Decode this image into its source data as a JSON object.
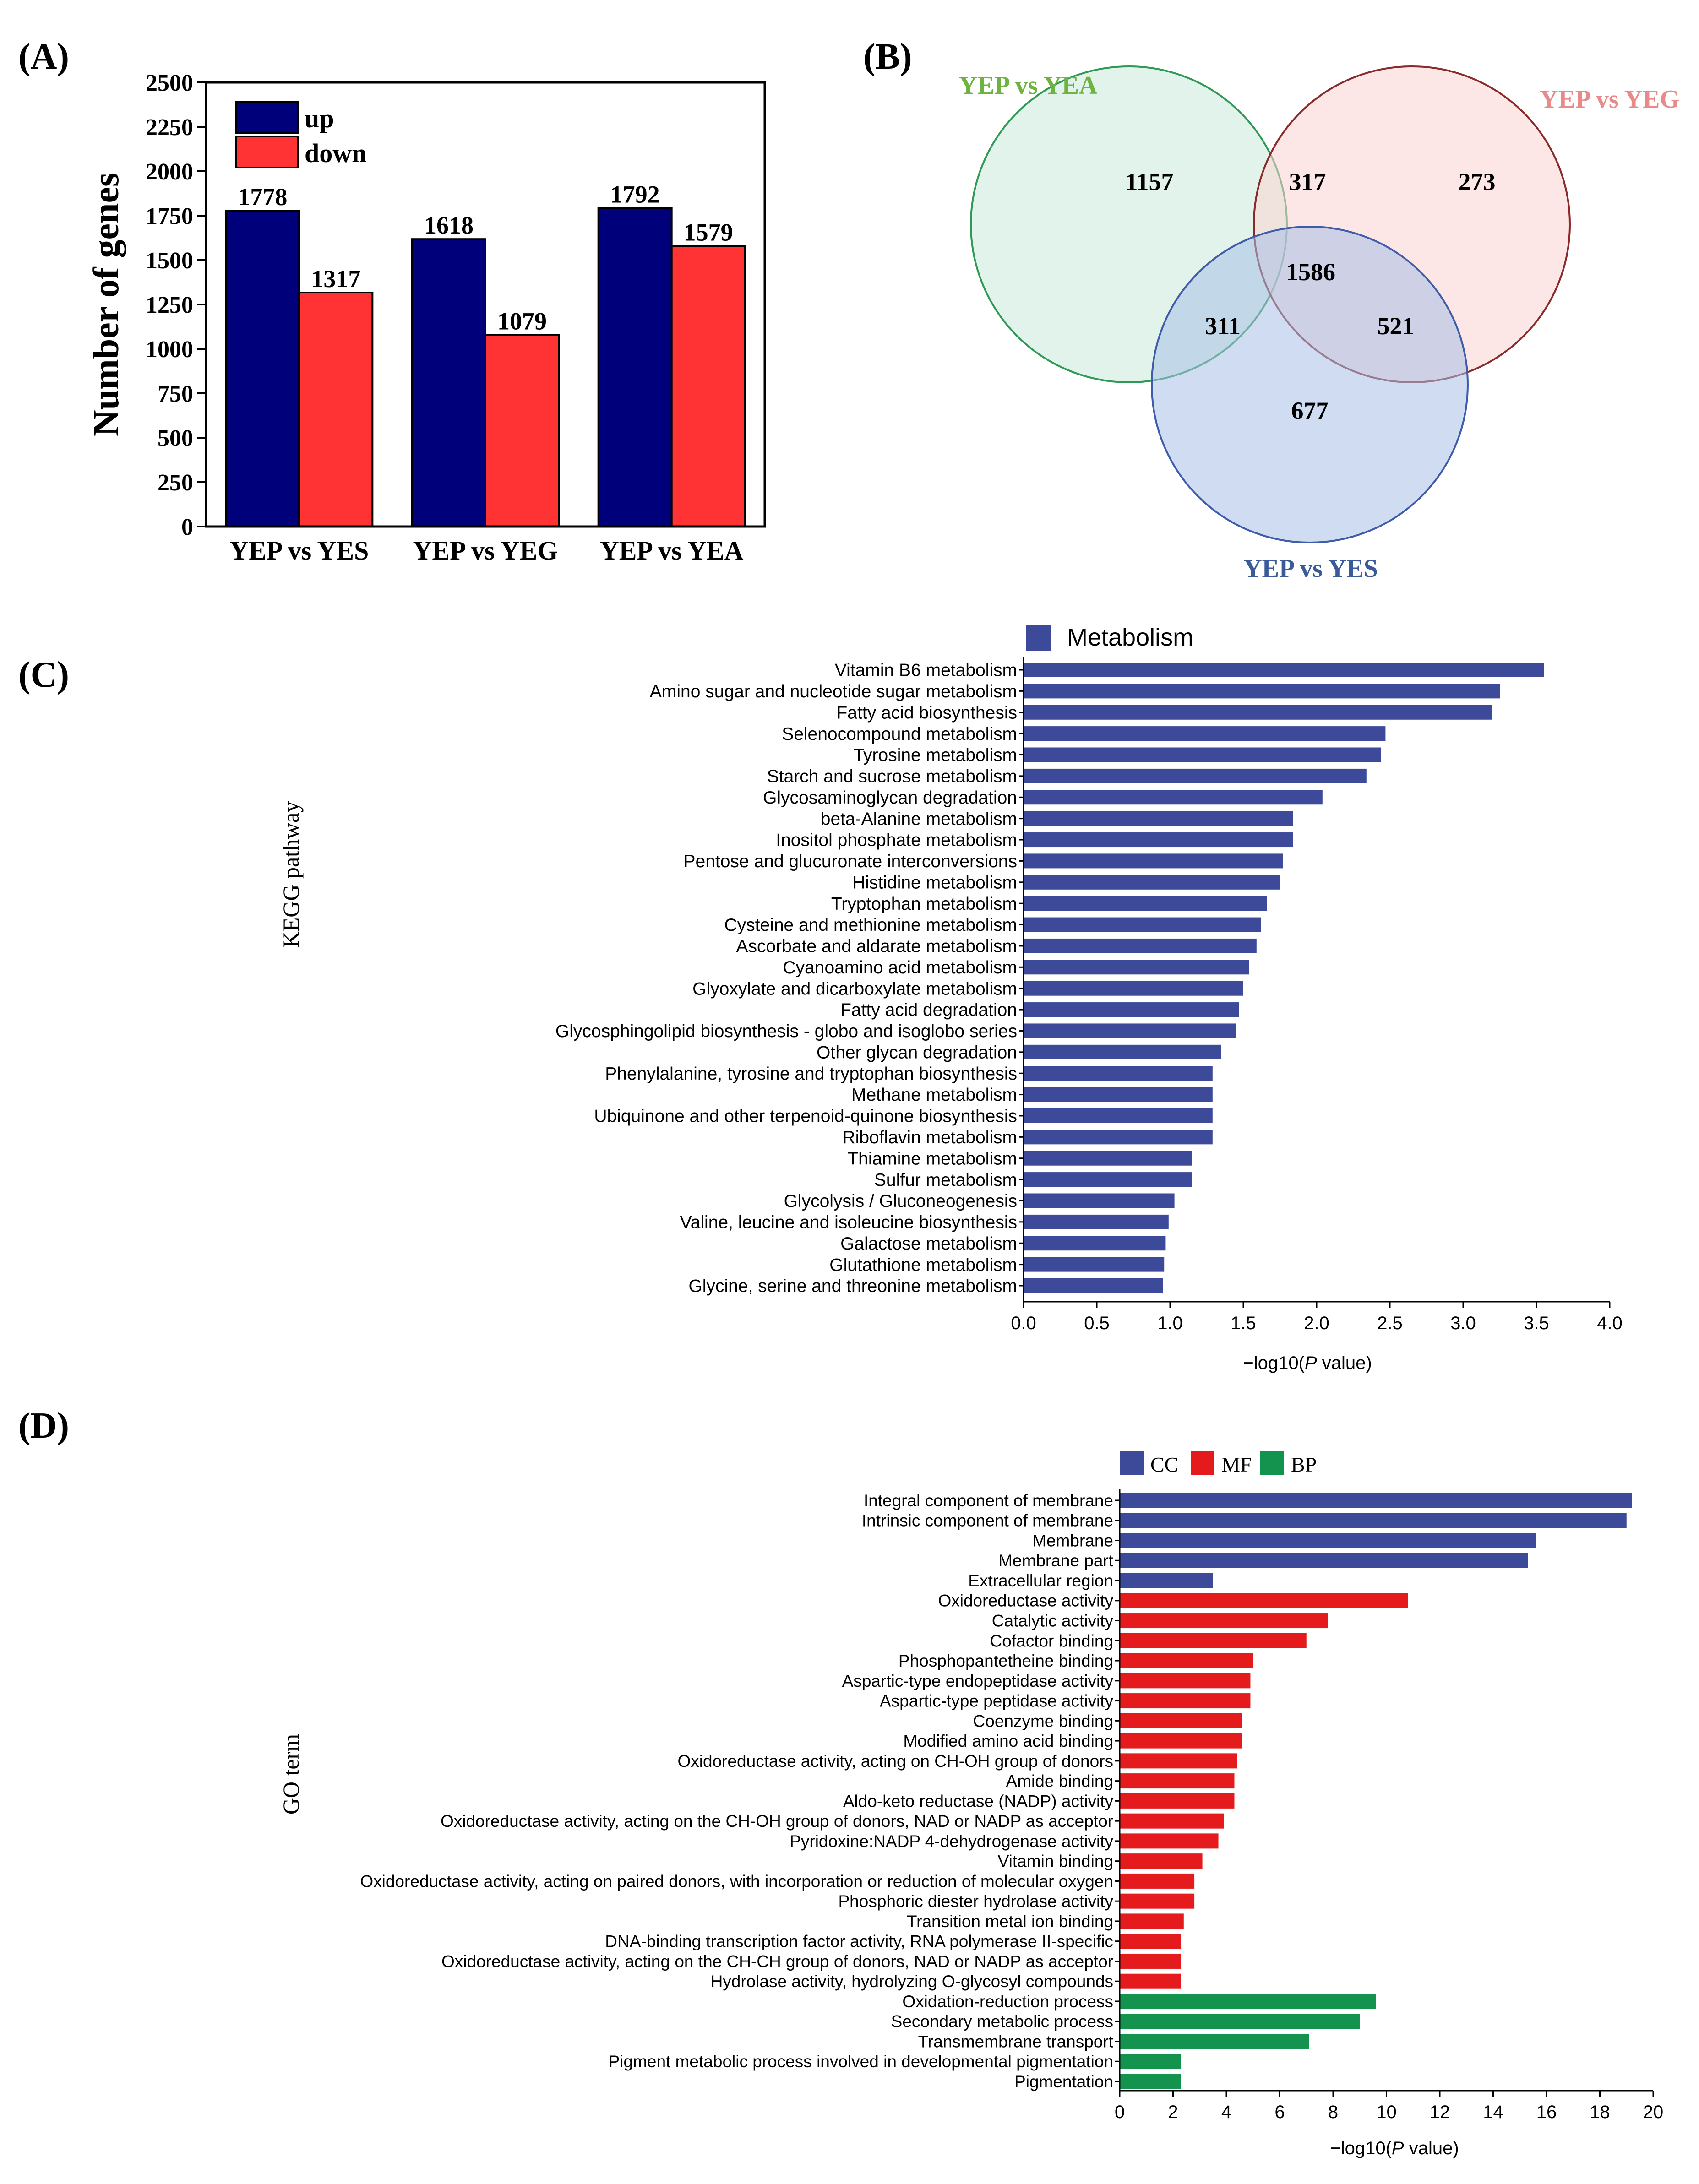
{
  "panel_labels": {
    "a": "(A)",
    "b": "(B)",
    "c": "(C)",
    "d": "(D)"
  },
  "colors": {
    "up": "#00007a",
    "down": "#ff3333",
    "metabolism": "#3c4a99",
    "cc": "#3c4a99",
    "mf": "#e41a1c",
    "bp": "#14934f",
    "yea_stroke": "#2e9a56",
    "yea_fill": "#cbeadb",
    "yeg_stroke": "#8a2a2a",
    "yeg_fill": "#fbd3d2",
    "yes_stroke": "#3e5ca8",
    "yes_fill": "#a8bfe6",
    "yea_label": "#6db33f",
    "yeg_label": "#e98a8a",
    "yes_label": "#3a5a98"
  },
  "chart_data": [
    {
      "id": "A",
      "type": "bar",
      "categories": [
        "YEP vs YES",
        "YEP vs YEG",
        "YEP vs YEA"
      ],
      "series": [
        {
          "name": "up",
          "values": [
            1778,
            1618,
            1792
          ]
        },
        {
          "name": "down",
          "values": [
            1317,
            1079,
            1579
          ]
        }
      ],
      "ylabel": "Number of genes",
      "ylim": [
        0,
        2500
      ],
      "yticks": [
        "0",
        "250",
        "500",
        "750",
        "1000",
        "1250",
        "1500",
        "1750",
        "2000",
        "2250",
        "2500"
      ],
      "legend_position": "top-left"
    },
    {
      "id": "B",
      "type": "venn",
      "sets": [
        "YEP vs YEA",
        "YEP vs YEG",
        "YEP vs YES"
      ],
      "regions": {
        "yea_only": "1157",
        "yeg_only": "273",
        "yes_only": "677",
        "yea_yeg": "317",
        "yea_yes": "311",
        "yeg_yes": "521",
        "all": "1586"
      }
    },
    {
      "id": "C",
      "type": "bar",
      "orientation": "horizontal",
      "legend": [
        "Metabolism"
      ],
      "ylabel": "KEGG pathway",
      "xlabel_prefix": "−log10(",
      "xlabel_italic": "P",
      "xlabel_suffix": " value)",
      "xlim": [
        0,
        4
      ],
      "xticks": [
        "0.0",
        "0.5",
        "1.0",
        "1.5",
        "2.0",
        "2.5",
        "3.0",
        "3.5",
        "4.0"
      ],
      "categories": [
        "Vitamin B6 metabolism",
        "Amino sugar and nucleotide sugar metabolism",
        "Fatty acid biosynthesis",
        "Selenocompound metabolism",
        "Tyrosine metabolism",
        "Starch and sucrose metabolism",
        "Glycosaminoglycan degradation",
        "beta-Alanine metabolism",
        "Inositol phosphate metabolism",
        "Pentose and glucuronate interconversions",
        "Histidine metabolism",
        "Tryptophan metabolism",
        "Cysteine and methionine metabolism",
        "Ascorbate and aldarate metabolism",
        "Cyanoamino acid metabolism",
        "Glyoxylate and dicarboxylate metabolism",
        "Fatty acid degradation",
        "Glycosphingolipid biosynthesis - globo and isoglobo series",
        "Other glycan degradation",
        "Phenylalanine, tyrosine and tryptophan biosynthesis",
        "Methane metabolism",
        "Ubiquinone and other terpenoid-quinone biosynthesis",
        "Riboflavin metabolism",
        "Thiamine metabolism",
        "Sulfur metabolism",
        "Glycolysis / Gluconeogenesis",
        "Valine, leucine and isoleucine biosynthesis",
        "Galactose metabolism",
        "Glutathione metabolism",
        "Glycine, serine and threonine metabolism"
      ],
      "values": [
        3.55,
        3.25,
        3.2,
        2.47,
        2.44,
        2.34,
        2.04,
        1.84,
        1.84,
        1.77,
        1.75,
        1.66,
        1.62,
        1.59,
        1.54,
        1.5,
        1.47,
        1.45,
        1.35,
        1.29,
        1.29,
        1.29,
        1.29,
        1.15,
        1.15,
        1.03,
        0.99,
        0.97,
        0.96,
        0.95
      ]
    },
    {
      "id": "D",
      "type": "bar",
      "orientation": "horizontal",
      "legend": [
        "CC",
        "MF",
        "BP"
      ],
      "ylabel": "GO term",
      "xlabel_prefix": "−log10(",
      "xlabel_italic": "P",
      "xlabel_suffix": " value)",
      "xlim": [
        0,
        20
      ],
      "xticks": [
        "0",
        "2",
        "4",
        "6",
        "8",
        "10",
        "12",
        "14",
        "16",
        "18",
        "20"
      ],
      "categories": [
        "Integral component of membrane",
        "Intrinsic component of membrane",
        "Membrane",
        "Membrane part",
        "Extracellular region",
        "Oxidoreductase activity",
        "Catalytic activity",
        "Cofactor binding",
        "Phosphopantetheine binding",
        "Aspartic-type endopeptidase activity",
        "Aspartic-type peptidase activity",
        "Coenzyme binding",
        "Modified amino acid binding",
        "Oxidoreductase activity, acting on CH-OH group of donors",
        "Amide binding",
        "Aldo-keto reductase (NADP) activity",
        "Oxidoreductase activity, acting on the CH-OH group of donors, NAD or NADP as acceptor",
        "Pyridoxine:NADP 4-dehydrogenase activity",
        "Vitamin binding",
        "Oxidoreductase activity, acting on paired donors, with incorporation or reduction of molecular oxygen",
        "Phosphoric diester hydrolase activity",
        "Transition metal ion binding",
        "DNA-binding transcription factor activity, RNA polymerase II-specific",
        "Oxidoreductase activity, acting on the CH-CH group of donors, NAD or NADP as acceptor",
        "Hydrolase activity, hydrolyzing O-glycosyl compounds",
        "Oxidation-reduction process",
        "Secondary metabolic process",
        "Transmembrane transport",
        "Pigment metabolic process involved in developmental pigmentation",
        "Pigmentation"
      ],
      "groups": [
        "CC",
        "CC",
        "CC",
        "CC",
        "CC",
        "MF",
        "MF",
        "MF",
        "MF",
        "MF",
        "MF",
        "MF",
        "MF",
        "MF",
        "MF",
        "MF",
        "MF",
        "MF",
        "MF",
        "MF",
        "MF",
        "MF",
        "MF",
        "MF",
        "MF",
        "BP",
        "BP",
        "BP",
        "BP",
        "BP"
      ],
      "values": [
        19.2,
        19.0,
        15.6,
        15.3,
        3.5,
        10.8,
        7.8,
        7.0,
        5.0,
        4.9,
        4.9,
        4.6,
        4.6,
        4.4,
        4.3,
        4.3,
        3.9,
        3.7,
        3.1,
        2.8,
        2.8,
        2.4,
        2.3,
        2.3,
        2.3,
        9.6,
        9.0,
        7.1,
        2.3,
        2.3
      ]
    }
  ]
}
